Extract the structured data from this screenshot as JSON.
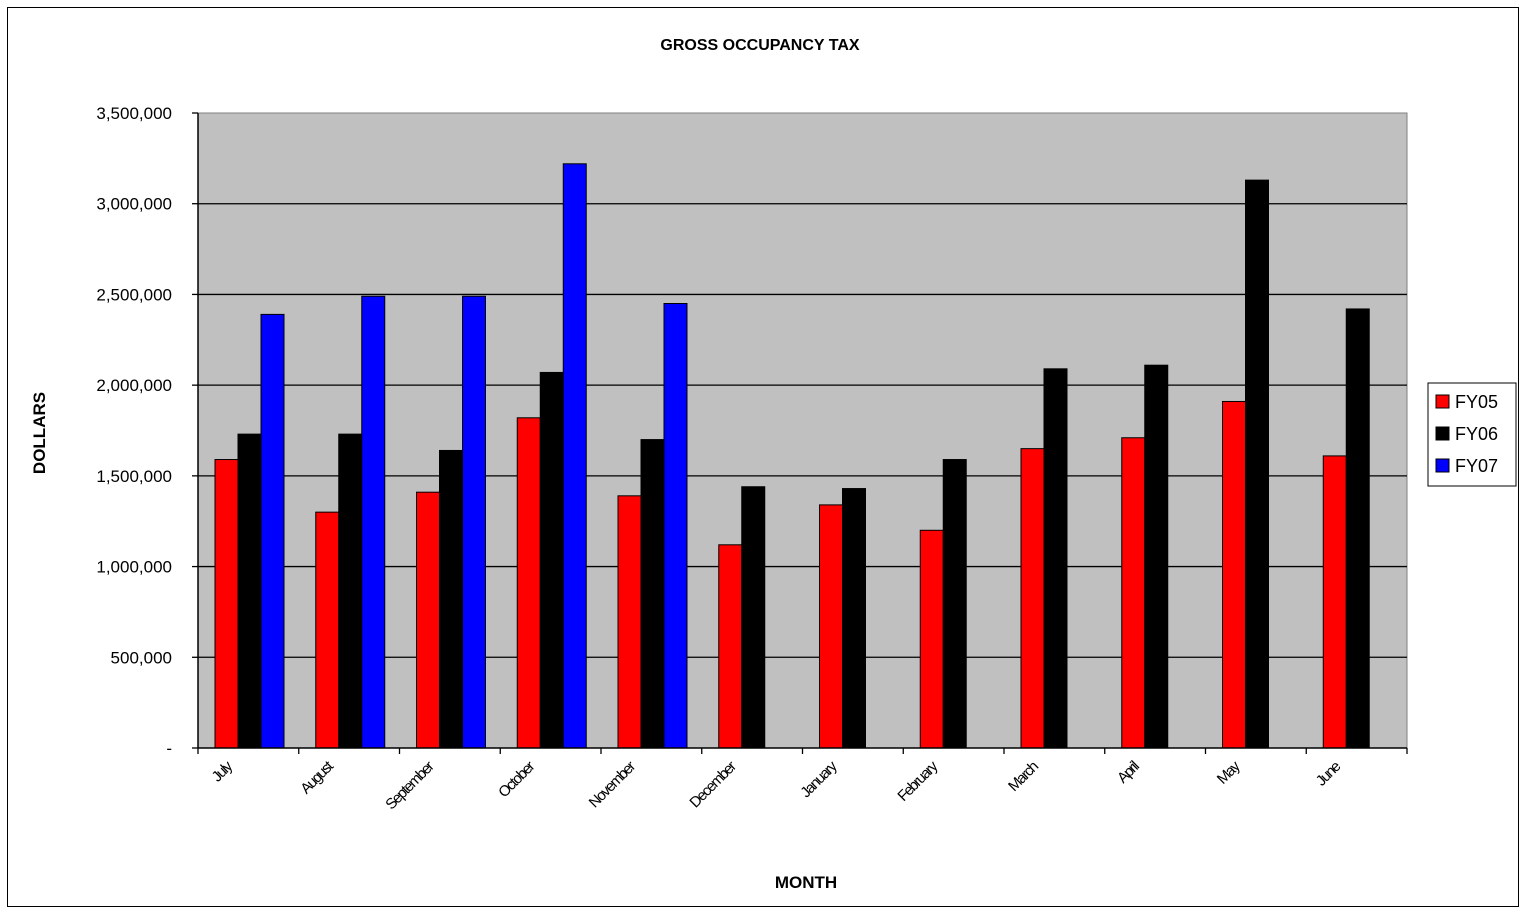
{
  "chart_data": {
    "type": "bar",
    "title": "GROSS OCCUPANCY TAX",
    "xlabel": "MONTH",
    "ylabel": "DOLLARS",
    "ylim": [
      0,
      3500000
    ],
    "yticks": [
      0,
      500000,
      1000000,
      1500000,
      2000000,
      2500000,
      3000000,
      3500000
    ],
    "ytick_labels": [
      "-",
      "500,000",
      "1,000,000",
      "1,500,000",
      "2,000,000",
      "2,500,000",
      "3,000,000",
      "3,500,000"
    ],
    "categories": [
      "July",
      "August",
      "September",
      "October",
      "November",
      "December",
      "January",
      "February",
      "March",
      "April",
      "May",
      "June"
    ],
    "series": [
      {
        "name": "FY05",
        "color": "#ff0000",
        "values": [
          1590000,
          1300000,
          1410000,
          1820000,
          1390000,
          1120000,
          1340000,
          1200000,
          1650000,
          1710000,
          1910000,
          1610000
        ]
      },
      {
        "name": "FY06",
        "color": "#000000",
        "values": [
          1730000,
          1730000,
          1640000,
          2070000,
          1700000,
          1440000,
          1430000,
          1590000,
          2090000,
          2110000,
          3130000,
          2420000
        ]
      },
      {
        "name": "FY07",
        "color": "#0000ff",
        "values": [
          2390000,
          2490000,
          2490000,
          3220000,
          2450000,
          null,
          null,
          null,
          null,
          null,
          null,
          null
        ]
      }
    ],
    "grid": true,
    "plot_background": "#c0c0c0",
    "legend_position": "right"
  }
}
